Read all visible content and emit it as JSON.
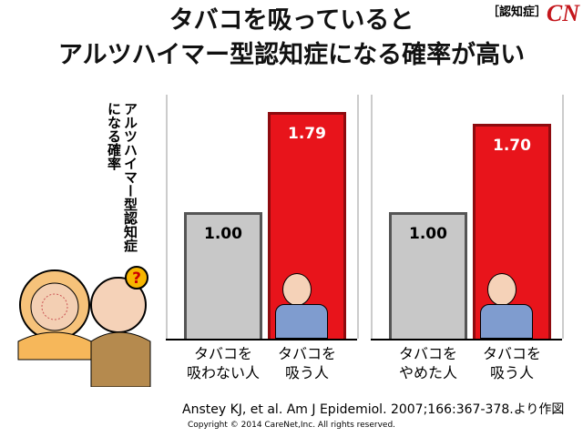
{
  "header": {
    "title": "タバコを吸っていると\nアルツハイマー型認知症になる確率が高い",
    "tag": "［認知症］",
    "logo": "CN"
  },
  "chart_data": [
    {
      "type": "bar",
      "ylabel": "アルツハイマー型認知症になる確率",
      "categories": [
        "タバコを\n吸わない人",
        "タバコを\n吸う人"
      ],
      "values": [
        1.0,
        1.79
      ],
      "value_labels": [
        "1.00",
        "1.79"
      ],
      "colors": [
        "#c8c8c8",
        "#e8141b"
      ]
    },
    {
      "type": "bar",
      "categories": [
        "タバコを\nやめた人",
        "タバコを\n吸う人"
      ],
      "values": [
        1.0,
        1.7
      ],
      "value_labels": [
        "1.00",
        "1.70"
      ],
      "colors": [
        "#c8c8c8",
        "#e8141b"
      ]
    }
  ],
  "illustration": {
    "question_mark": "?"
  },
  "footer": {
    "citation": "Anstey KJ, et al. Am J Epidemiol. 2007;166:367-378.より作図",
    "copyright": "Copyright © 2014 CareNet,Inc. All rights reserved."
  }
}
